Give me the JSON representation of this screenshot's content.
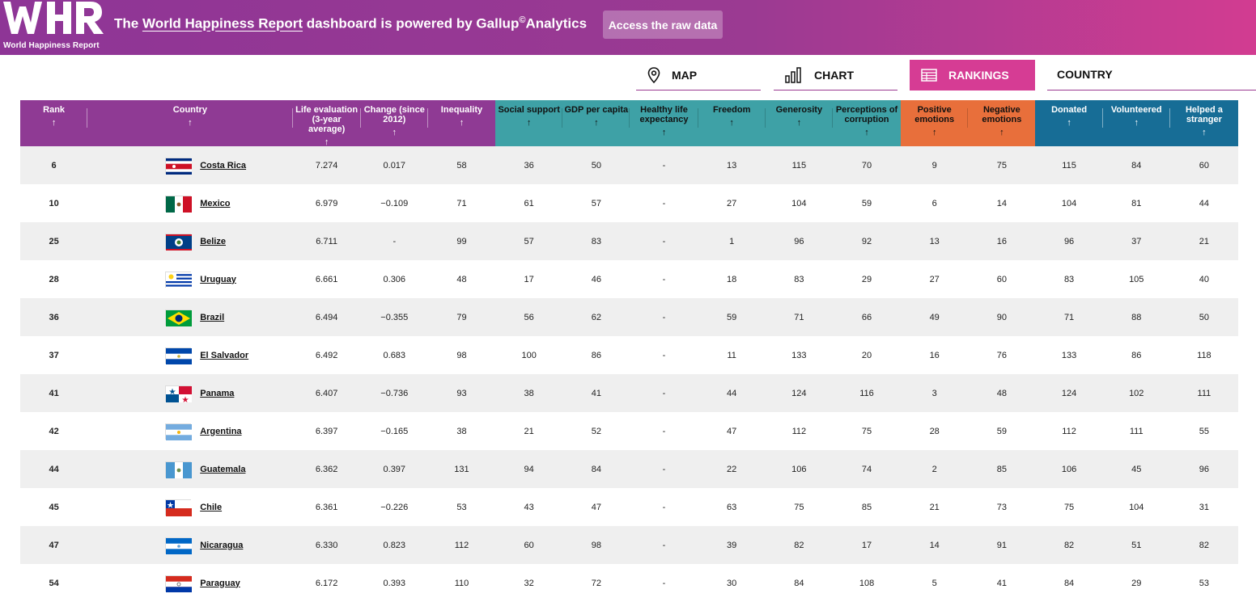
{
  "brand": {
    "logo_letters": "WHR",
    "logo_text": "World Happiness Report",
    "purple": "#8e3596",
    "pink": "#d63c94"
  },
  "header": {
    "text_before": "The ",
    "link": "World Happiness Report",
    "text_middle": " dashboard is powered by Gallup",
    "copyright": "©",
    "text_after": "Analytics",
    "raw_data_button": "Access the raw data"
  },
  "tabs": [
    {
      "label": "MAP",
      "icon": "map-pin-icon"
    },
    {
      "label": "CHART",
      "icon": "bar-chart-icon"
    },
    {
      "label": "RANKINGS",
      "icon": "table-icon",
      "active": true
    },
    {
      "label": "COUNTRY"
    }
  ],
  "columns": [
    {
      "label": "Rank",
      "group": "purple"
    },
    {
      "label": "Country",
      "group": "purple"
    },
    {
      "label": "Life evaluation (3-year average)",
      "group": "purple"
    },
    {
      "label": "Change (since 2012)",
      "group": "purple"
    },
    {
      "label": "Inequality",
      "group": "purple"
    },
    {
      "label": "Social support",
      "group": "teal"
    },
    {
      "label": "GDP per capita",
      "group": "teal"
    },
    {
      "label": "Healthy life expectancy",
      "group": "teal"
    },
    {
      "label": "Freedom",
      "group": "teal"
    },
    {
      "label": "Generosity",
      "group": "teal"
    },
    {
      "label": "Perceptions of corruption",
      "group": "teal"
    },
    {
      "label": "Positive emotions",
      "group": "orange"
    },
    {
      "label": "Negative emotions",
      "group": "orange"
    },
    {
      "label": "Donated",
      "group": "blue"
    },
    {
      "label": "Volunteered",
      "group": "blue"
    },
    {
      "label": "Helped a stranger",
      "group": "blue"
    }
  ],
  "sort_arrow": "↑",
  "rows": [
    {
      "rank": "6",
      "country": "Costa Rica",
      "flag": "costa-rica",
      "values": [
        "7.274",
        "0.017",
        "58",
        "36",
        "50",
        "-",
        "13",
        "115",
        "70",
        "9",
        "75",
        "115",
        "84",
        "60"
      ]
    },
    {
      "rank": "10",
      "country": "Mexico",
      "flag": "mexico",
      "values": [
        "6.979",
        "−0.109",
        "71",
        "61",
        "57",
        "-",
        "27",
        "104",
        "59",
        "6",
        "14",
        "104",
        "81",
        "44"
      ]
    },
    {
      "rank": "25",
      "country": "Belize",
      "flag": "belize",
      "values": [
        "6.711",
        "-",
        "99",
        "57",
        "83",
        "-",
        "1",
        "96",
        "92",
        "13",
        "16",
        "96",
        "37",
        "21"
      ]
    },
    {
      "rank": "28",
      "country": "Uruguay",
      "flag": "uruguay",
      "values": [
        "6.661",
        "0.306",
        "48",
        "17",
        "46",
        "-",
        "18",
        "83",
        "29",
        "27",
        "60",
        "83",
        "105",
        "40"
      ]
    },
    {
      "rank": "36",
      "country": "Brazil",
      "flag": "brazil",
      "values": [
        "6.494",
        "−0.355",
        "79",
        "56",
        "62",
        "-",
        "59",
        "71",
        "66",
        "49",
        "90",
        "71",
        "88",
        "50"
      ]
    },
    {
      "rank": "37",
      "country": "El Salvador",
      "flag": "el-salvador",
      "values": [
        "6.492",
        "0.683",
        "98",
        "100",
        "86",
        "-",
        "11",
        "133",
        "20",
        "16",
        "76",
        "133",
        "86",
        "118"
      ]
    },
    {
      "rank": "41",
      "country": "Panama",
      "flag": "panama",
      "values": [
        "6.407",
        "−0.736",
        "93",
        "38",
        "41",
        "-",
        "44",
        "124",
        "116",
        "3",
        "48",
        "124",
        "102",
        "111"
      ]
    },
    {
      "rank": "42",
      "country": "Argentina",
      "flag": "argentina",
      "values": [
        "6.397",
        "−0.165",
        "38",
        "21",
        "52",
        "-",
        "47",
        "112",
        "75",
        "28",
        "59",
        "112",
        "111",
        "55"
      ]
    },
    {
      "rank": "44",
      "country": "Guatemala",
      "flag": "guatemala",
      "values": [
        "6.362",
        "0.397",
        "131",
        "94",
        "84",
        "-",
        "22",
        "106",
        "74",
        "2",
        "85",
        "106",
        "45",
        "96"
      ]
    },
    {
      "rank": "45",
      "country": "Chile",
      "flag": "chile",
      "values": [
        "6.361",
        "−0.226",
        "53",
        "43",
        "47",
        "-",
        "63",
        "75",
        "85",
        "21",
        "73",
        "75",
        "104",
        "31"
      ]
    },
    {
      "rank": "47",
      "country": "Nicaragua",
      "flag": "nicaragua",
      "values": [
        "6.330",
        "0.823",
        "112",
        "60",
        "98",
        "-",
        "39",
        "82",
        "17",
        "14",
        "91",
        "82",
        "51",
        "82"
      ]
    },
    {
      "rank": "54",
      "country": "Paraguay",
      "flag": "paraguay",
      "values": [
        "6.172",
        "0.393",
        "110",
        "32",
        "72",
        "-",
        "30",
        "84",
        "108",
        "5",
        "41",
        "84",
        "29",
        "53"
      ]
    }
  ]
}
